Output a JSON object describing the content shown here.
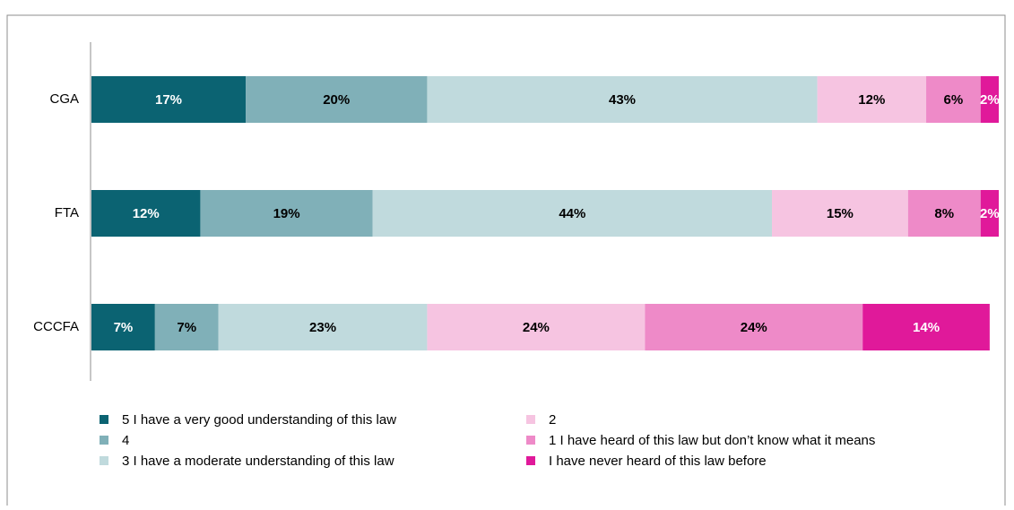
{
  "chart_data": {
    "type": "stacked-bar-horizontal",
    "categories": [
      "CGA",
      "FTA",
      "CCCFA"
    ],
    "xlim": [
      0,
      100
    ],
    "series": [
      {
        "name": "5 I have a very good understanding of this law",
        "color": "#0b6372",
        "values": [
          17,
          12,
          7
        ],
        "value_labels": [
          "17%",
          "12%",
          "7%"
        ]
      },
      {
        "name": "4",
        "color": "#80b0b8",
        "values": [
          20,
          19,
          7
        ],
        "value_labels": [
          "20%",
          "19%",
          "7%"
        ]
      },
      {
        "name": "3 I have a moderate understanding of this law",
        "color": "#c0dadd",
        "values": [
          43,
          44,
          23
        ],
        "value_labels": [
          "43%",
          "44%",
          "23%"
        ]
      },
      {
        "name": "2",
        "color": "#f6c4e1",
        "values": [
          12,
          15,
          24
        ],
        "value_labels": [
          "12%",
          "15%",
          "24%"
        ]
      },
      {
        "name": "1 I have heard of this law but don’t know what it means",
        "color": "#ee8ac8",
        "values": [
          6,
          8,
          24
        ],
        "value_labels": [
          "6%",
          "8%",
          "24%"
        ]
      },
      {
        "name": "I have never heard of this law before",
        "color": "#e0199a",
        "values": [
          2,
          2,
          14
        ],
        "value_labels": [
          "2%",
          "2%",
          "14%"
        ]
      }
    ]
  }
}
